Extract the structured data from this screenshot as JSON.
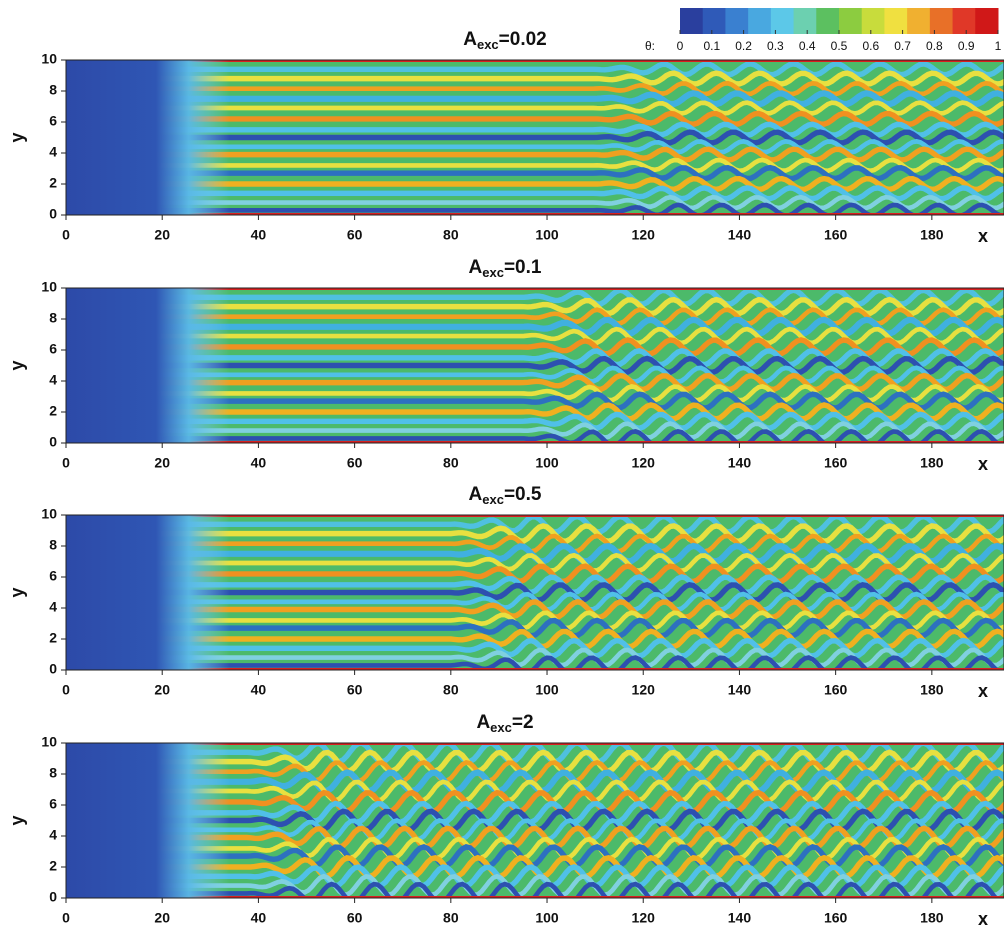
{
  "colorbar": {
    "label": "θ:",
    "lim": [
      0,
      1
    ],
    "ticks": [
      0,
      0.1,
      0.2,
      0.3,
      0.4,
      0.5,
      0.6,
      0.7,
      0.8,
      0.9,
      1
    ],
    "colors": [
      "#2a3f9e",
      "#2f5ab8",
      "#3a80d0",
      "#49a8e0",
      "#5cc8e8",
      "#6cd0b0",
      "#5cc060",
      "#8ccc40",
      "#c8dc3c",
      "#f0e040",
      "#f0b030",
      "#e87028",
      "#e03828",
      "#d01818"
    ]
  },
  "chart_data": [
    {
      "type": "contour",
      "title": [
        "A",
        "exc",
        "=0.02"
      ],
      "xlabel": "x",
      "ylabel": "y",
      "xlim": [
        0,
        195
      ],
      "ylim": [
        0,
        10
      ],
      "xticks": [
        0,
        20,
        40,
        60,
        80,
        100,
        120,
        140,
        160,
        180
      ],
      "yticks": [
        0,
        2,
        4,
        6,
        8,
        10
      ]
    },
    {
      "type": "contour",
      "title": [
        "A",
        "exc",
        "=0.1"
      ],
      "xlabel": "x",
      "ylabel": "y",
      "xlim": [
        0,
        195
      ],
      "ylim": [
        0,
        10
      ],
      "xticks": [
        0,
        20,
        40,
        60,
        80,
        100,
        120,
        140,
        160,
        180
      ],
      "yticks": [
        0,
        2,
        4,
        6,
        8,
        10
      ]
    },
    {
      "type": "contour",
      "title": [
        "A",
        "exc",
        "=0.5"
      ],
      "xlabel": "x",
      "ylabel": "y",
      "xlim": [
        0,
        195
      ],
      "ylim": [
        0,
        10
      ],
      "xticks": [
        0,
        20,
        40,
        60,
        80,
        100,
        120,
        140,
        160,
        180
      ],
      "yticks": [
        0,
        2,
        4,
        6,
        8,
        10
      ]
    },
    {
      "type": "contour",
      "title": [
        "A",
        "exc",
        "=2"
      ],
      "xlabel": "x",
      "ylabel": "y",
      "xlim": [
        0,
        195
      ],
      "ylim": [
        0,
        10
      ],
      "xticks": [
        0,
        20,
        40,
        60,
        80,
        100,
        120,
        140,
        160,
        180
      ],
      "yticks": [
        0,
        2,
        4,
        6,
        8,
        10
      ]
    }
  ]
}
